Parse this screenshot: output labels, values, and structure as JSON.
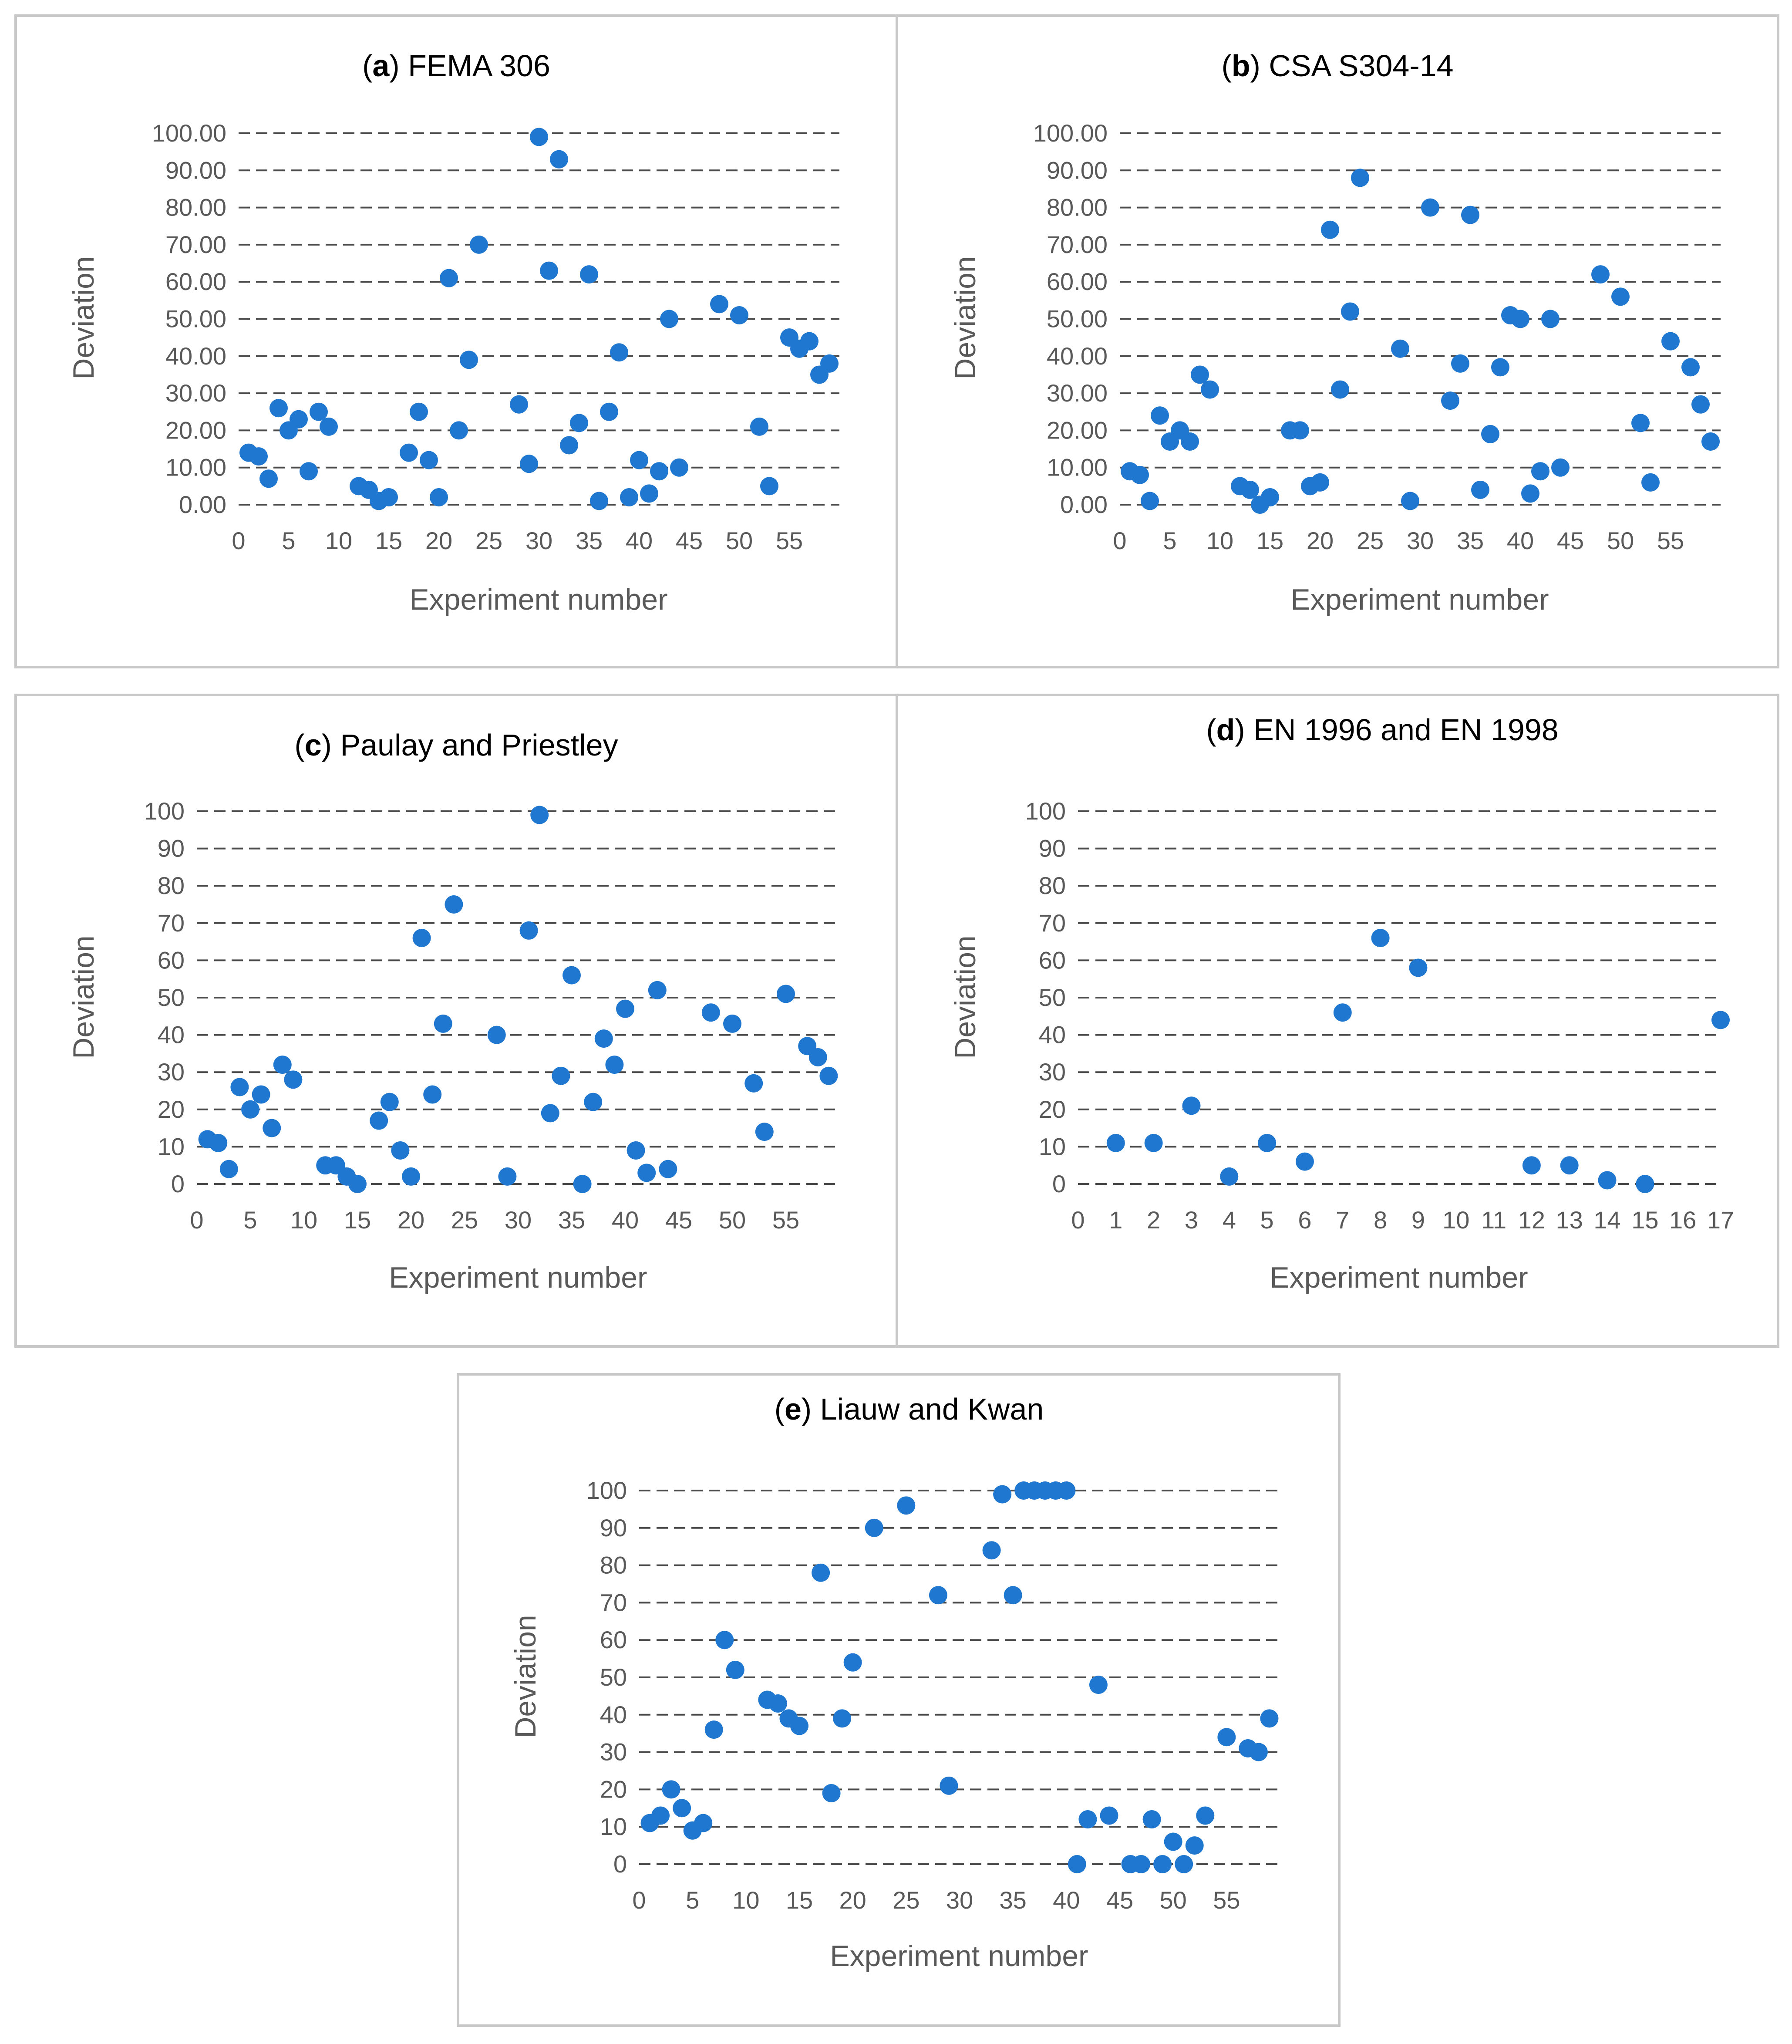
{
  "chart_data": [
    {
      "type": "scatter",
      "id": "a",
      "title_label": "a",
      "title_text": "FEMA 306",
      "xlabel": "Experiment number",
      "ylabel": "Deviation",
      "xlim": [
        0,
        60
      ],
      "ylim": [
        0,
        100
      ],
      "x_ticks": [
        "0",
        "5",
        "10",
        "15",
        "20",
        "25",
        "30",
        "35",
        "40",
        "45",
        "50",
        "55"
      ],
      "y_ticks": [
        "0.00",
        "10.00",
        "20.00",
        "30.00",
        "40.00",
        "50.00",
        "60.00",
        "70.00",
        "80.00",
        "90.00",
        "100.00"
      ],
      "grid": true,
      "x": [
        1,
        2,
        3,
        4,
        5,
        6,
        7,
        8,
        9,
        12,
        13,
        14,
        15,
        17,
        18,
        19,
        20,
        21,
        22,
        23,
        24,
        28,
        29,
        30,
        31,
        32,
        33,
        34,
        35,
        36,
        37,
        38,
        39,
        40,
        41,
        42,
        43,
        44,
        48,
        50,
        52,
        53,
        55,
        56,
        57,
        58,
        59
      ],
      "y": [
        14,
        13,
        7,
        26,
        20,
        23,
        9,
        25,
        21,
        5,
        4,
        1,
        2,
        14,
        25,
        12,
        2,
        61,
        20,
        39,
        70,
        27,
        11,
        99,
        63,
        93,
        16,
        22,
        62,
        1,
        25,
        41,
        2,
        12,
        3,
        9,
        50,
        10,
        54,
        51,
        21,
        5,
        45,
        42,
        44,
        35,
        38
      ]
    },
    {
      "type": "scatter",
      "id": "b",
      "title_label": "b",
      "title_text": "CSA S304-14",
      "xlabel": "Experiment number",
      "ylabel": "Deviation",
      "xlim": [
        0,
        60
      ],
      "ylim": [
        0,
        100
      ],
      "x_ticks": [
        "0",
        "5",
        "10",
        "15",
        "20",
        "25",
        "30",
        "35",
        "40",
        "45",
        "50",
        "55"
      ],
      "y_ticks": [
        "0.00",
        "10.00",
        "20.00",
        "30.00",
        "40.00",
        "50.00",
        "60.00",
        "70.00",
        "80.00",
        "90.00",
        "100.00"
      ],
      "grid": true,
      "x": [
        1,
        2,
        3,
        4,
        5,
        6,
        7,
        8,
        9,
        12,
        13,
        14,
        15,
        17,
        18,
        19,
        20,
        21,
        22,
        23,
        24,
        28,
        29,
        31,
        33,
        34,
        35,
        36,
        37,
        38,
        39,
        40,
        41,
        42,
        43,
        44,
        48,
        50,
        52,
        53,
        55,
        57,
        58,
        59
      ],
      "y": [
        9,
        8,
        1,
        24,
        17,
        20,
        17,
        35,
        31,
        5,
        4,
        0,
        2,
        20,
        20,
        5,
        6,
        74,
        31,
        52,
        88,
        42,
        1,
        80,
        28,
        38,
        78,
        4,
        19,
        37,
        51,
        50,
        3,
        9,
        50,
        10,
        62,
        56,
        22,
        6,
        44,
        37,
        27,
        17
      ]
    },
    {
      "type": "scatter",
      "id": "c",
      "title_label": "c",
      "title_text": "Paulay and Priestley",
      "xlabel": "Experiment number",
      "ylabel": "Deviation",
      "xlim": [
        0,
        60
      ],
      "ylim": [
        0,
        100
      ],
      "x_ticks": [
        "0",
        "5",
        "10",
        "15",
        "20",
        "25",
        "30",
        "35",
        "40",
        "45",
        "50",
        "55"
      ],
      "y_ticks": [
        "0",
        "10",
        "20",
        "30",
        "40",
        "50",
        "60",
        "70",
        "80",
        "90",
        "100"
      ],
      "grid": true,
      "x": [
        1,
        2,
        3,
        4,
        5,
        6,
        7,
        8,
        9,
        12,
        13,
        14,
        15,
        17,
        18,
        19,
        20,
        21,
        22,
        23,
        24,
        28,
        29,
        31,
        32,
        33,
        34,
        35,
        36,
        37,
        38,
        39,
        40,
        41,
        42,
        43,
        44,
        48,
        50,
        52,
        53,
        55,
        57,
        58,
        59
      ],
      "y": [
        12,
        11,
        4,
        26,
        20,
        24,
        15,
        32,
        28,
        5,
        5,
        2,
        0,
        17,
        22,
        9,
        2,
        66,
        24,
        43,
        75,
        40,
        2,
        68,
        99,
        19,
        29,
        56,
        0,
        22,
        39,
        32,
        47,
        9,
        3,
        52,
        4,
        46,
        43,
        27,
        14,
        51,
        37,
        34,
        29
      ]
    },
    {
      "type": "scatter",
      "id": "d",
      "title_label": "d",
      "title_text": "EN 1996 and EN 1998",
      "xlabel": "Experiment number",
      "ylabel": "Deviation",
      "xlim": [
        0,
        17
      ],
      "ylim": [
        0,
        100
      ],
      "x_ticks": [
        "0",
        "1",
        "2",
        "3",
        "4",
        "5",
        "6",
        "7",
        "8",
        "9",
        "10",
        "11",
        "12",
        "13",
        "14",
        "15",
        "16",
        "17"
      ],
      "y_ticks": [
        "0",
        "10",
        "20",
        "30",
        "40",
        "50",
        "60",
        "70",
        "80",
        "90",
        "100"
      ],
      "grid": true,
      "x": [
        1,
        2,
        3,
        4,
        5,
        6,
        7,
        8,
        9,
        12,
        13,
        14,
        15,
        17
      ],
      "y": [
        11,
        11,
        21,
        2,
        11,
        6,
        46,
        66,
        58,
        5,
        5,
        1,
        0,
        44
      ]
    },
    {
      "type": "scatter",
      "id": "e",
      "title_label": "e",
      "title_text": "Liauw and Kwan",
      "xlabel": "Experiment number",
      "ylabel": "Deviation",
      "xlim": [
        0,
        60
      ],
      "ylim": [
        0,
        100
      ],
      "x_ticks": [
        "0",
        "5",
        "10",
        "15",
        "20",
        "25",
        "30",
        "35",
        "40",
        "45",
        "50",
        "55"
      ],
      "y_ticks": [
        "0",
        "10",
        "20",
        "30",
        "40",
        "50",
        "60",
        "70",
        "80",
        "90",
        "100"
      ],
      "grid": true,
      "x": [
        1,
        2,
        3,
        4,
        5,
        6,
        7,
        8,
        9,
        12,
        13,
        14,
        15,
        17,
        18,
        19,
        20,
        22,
        25,
        28,
        29,
        33,
        34,
        35,
        36,
        37,
        38,
        39,
        40,
        41,
        42,
        43,
        44,
        46,
        47,
        48,
        49,
        50,
        51,
        52,
        53,
        55,
        57,
        58,
        59
      ],
      "y": [
        11,
        13,
        20,
        15,
        9,
        11,
        36,
        60,
        52,
        44,
        43,
        39,
        37,
        78,
        19,
        39,
        54,
        90,
        96,
        72,
        21,
        84,
        99,
        72,
        100,
        100,
        100,
        100,
        100,
        0,
        12,
        48,
        13,
        0,
        0,
        12,
        0,
        6,
        0,
        5,
        13,
        34,
        31,
        30,
        39
      ]
    }
  ]
}
